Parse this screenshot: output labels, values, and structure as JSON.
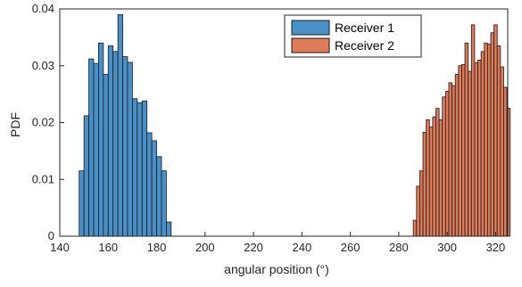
{
  "chart_data": {
    "type": "bar",
    "title": "",
    "xlabel": "angular position (°)",
    "ylabel": "PDF",
    "xlim": [
      140,
      325
    ],
    "ylim": [
      0,
      0.04
    ],
    "xticks": [
      140,
      160,
      180,
      200,
      220,
      240,
      260,
      280,
      300,
      320
    ],
    "yticks": [
      0,
      0.01,
      0.02,
      0.03,
      0.04
    ],
    "ytick_labels": [
      "0",
      "0.01",
      "0.02",
      "0.03",
      "0.04"
    ],
    "grid": false,
    "legend_position": "top-right",
    "series": [
      {
        "name": "Receiver 1",
        "color": "#4a90c8",
        "bin_start": 148,
        "bin_width": 2,
        "values": [
          0.0115,
          0.0212,
          0.0312,
          0.0304,
          0.034,
          0.0285,
          0.0335,
          0.0325,
          0.039,
          0.0316,
          0.0306,
          0.0242,
          0.0235,
          0.0238,
          0.0182,
          0.0168,
          0.014,
          0.0115,
          0.0025
        ]
      },
      {
        "name": "Receiver 2",
        "color": "#e07b5a",
        "bin_start": 286,
        "bin_width": 1.3333,
        "values": [
          0.0028,
          0.0088,
          0.0115,
          0.0183,
          0.0205,
          0.0192,
          0.021,
          0.0225,
          0.0205,
          0.0245,
          0.0255,
          0.027,
          0.0265,
          0.0285,
          0.03,
          0.0302,
          0.034,
          0.029,
          0.0372,
          0.0305,
          0.031,
          0.0325,
          0.034,
          0.0338,
          0.0358,
          0.0372,
          0.0335,
          0.0298,
          0.0262,
          0.0225
        ]
      }
    ]
  }
}
